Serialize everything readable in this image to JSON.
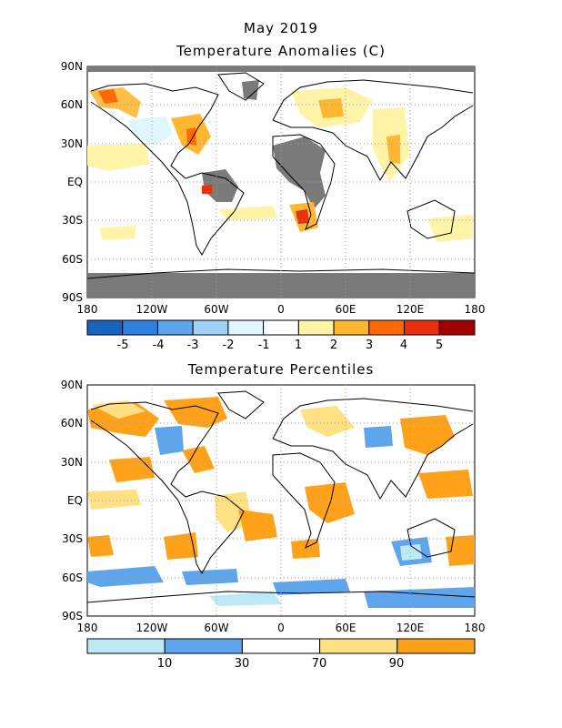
{
  "header": {
    "title_line1": "May 2019",
    "title_line2": "Temperature Anomalies (C)",
    "title_bottom": "Temperature Percentiles"
  },
  "axes": {
    "lat_labels": [
      "90N",
      "60N",
      "30N",
      "EQ",
      "30S",
      "60S",
      "90S"
    ],
    "lon_labels": [
      "180",
      "120W",
      "60W",
      "0",
      "60E",
      "120E",
      "180"
    ]
  },
  "colors": {
    "land_outline": "#000000",
    "missing": "#7a7a7a",
    "grid": "#9a9a9a"
  },
  "anomaly_colorbar": {
    "colors": [
      "#1565c0",
      "#2f7fe0",
      "#5aa5ee",
      "#9fd0f7",
      "#dff5ff",
      "#ffffff",
      "#fff3a8",
      "#ffb732",
      "#ff6a00",
      "#e8300a",
      "#a00000"
    ],
    "labels": [
      "-5",
      "-4",
      "-3",
      "-2",
      "-1",
      "1",
      "2",
      "3",
      "4",
      "5"
    ]
  },
  "percentile_colorbar": {
    "colors": [
      "#bde9f7",
      "#5ea5ec",
      "#ffffff",
      "#ffe082",
      "#ffa21a"
    ],
    "labels": [
      "10",
      "30",
      "70",
      "90"
    ]
  }
}
